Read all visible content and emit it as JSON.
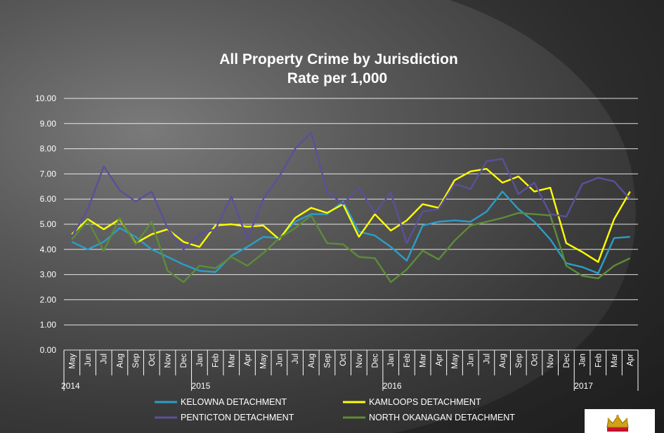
{
  "chart_data": {
    "type": "line",
    "title": [
      "All Property Crime by Jurisdiction",
      "Rate per 1,000"
    ],
    "ylim": [
      0,
      10
    ],
    "yticks": [
      "0.00",
      "1.00",
      "2.00",
      "3.00",
      "4.00",
      "5.00",
      "6.00",
      "7.00",
      "8.00",
      "9.00",
      "10.00"
    ],
    "grid": true,
    "legend": "bottom",
    "categories": [
      "May",
      "Jun",
      "Jul",
      "Aug",
      "Sep",
      "Oct",
      "Nov",
      "Dec",
      "Jan",
      "Feb",
      "Mar",
      "Apr",
      "May",
      "Jun",
      "Jul",
      "Aug",
      "Sep",
      "Oct",
      "Nov",
      "Dec",
      "Jan",
      "Feb",
      "Mar",
      "Apr",
      "May",
      "Jun",
      "Jul",
      "Aug",
      "Sep",
      "Oct",
      "Nov",
      "Dec",
      "Jan",
      "Feb",
      "Mar",
      "Apr"
    ],
    "years": [
      {
        "label": "2014",
        "at_index": 0
      },
      {
        "label": "2015",
        "at_index": 8
      },
      {
        "label": "2016",
        "at_index": 20
      },
      {
        "label": "2017",
        "at_index": 32
      }
    ],
    "series": [
      {
        "name": "KELOWNA DETACHMENT",
        "color": "#2a9ec9",
        "values": [
          4.3,
          4.0,
          4.3,
          4.85,
          4.5,
          4.0,
          3.7,
          3.4,
          3.15,
          3.1,
          3.75,
          4.1,
          4.5,
          4.45,
          5.1,
          5.4,
          5.4,
          5.9,
          4.7,
          4.55,
          4.1,
          3.55,
          4.95,
          5.1,
          5.15,
          5.1,
          5.5,
          6.3,
          5.6,
          5.1,
          4.4,
          3.45,
          3.3,
          3.05,
          4.45,
          4.5
        ]
      },
      {
        "name": "KAMLOOPS DETACHMENT",
        "color": "#ffff00",
        "values": [
          4.6,
          5.2,
          4.8,
          5.2,
          4.25,
          4.6,
          4.8,
          4.3,
          4.1,
          4.95,
          5.0,
          4.9,
          4.95,
          4.4,
          5.25,
          5.65,
          5.45,
          5.8,
          4.5,
          5.4,
          4.75,
          5.15,
          5.8,
          5.65,
          6.75,
          7.1,
          7.2,
          6.65,
          6.9,
          6.3,
          6.45,
          4.25,
          3.9,
          3.5,
          5.2,
          6.3
        ]
      },
      {
        "name": "PENTICTON DETACHMENT",
        "color": "#5a509a",
        "values": [
          4.5,
          5.6,
          7.3,
          6.35,
          5.9,
          6.3,
          4.85,
          4.0,
          4.6,
          4.8,
          6.1,
          4.4,
          6.0,
          6.9,
          8.0,
          8.65,
          6.3,
          5.8,
          6.45,
          5.45,
          6.25,
          4.25,
          5.5,
          5.6,
          6.6,
          6.4,
          7.5,
          7.6,
          6.2,
          6.65,
          5.4,
          5.3,
          6.6,
          6.85,
          6.7,
          6.0
        ]
      },
      {
        "name": "NORTH OKANAGAN DETACHMENT",
        "color": "#5d8c38",
        "values": [
          4.4,
          5.15,
          3.95,
          5.25,
          4.2,
          5.1,
          3.15,
          2.7,
          3.35,
          3.25,
          3.7,
          3.35,
          3.85,
          4.45,
          4.85,
          5.35,
          4.25,
          4.2,
          3.7,
          3.65,
          2.7,
          3.2,
          3.95,
          3.6,
          4.35,
          4.95,
          5.1,
          5.25,
          5.45,
          5.4,
          5.35,
          3.35,
          2.95,
          2.85,
          3.35,
          3.65
        ]
      }
    ]
  }
}
